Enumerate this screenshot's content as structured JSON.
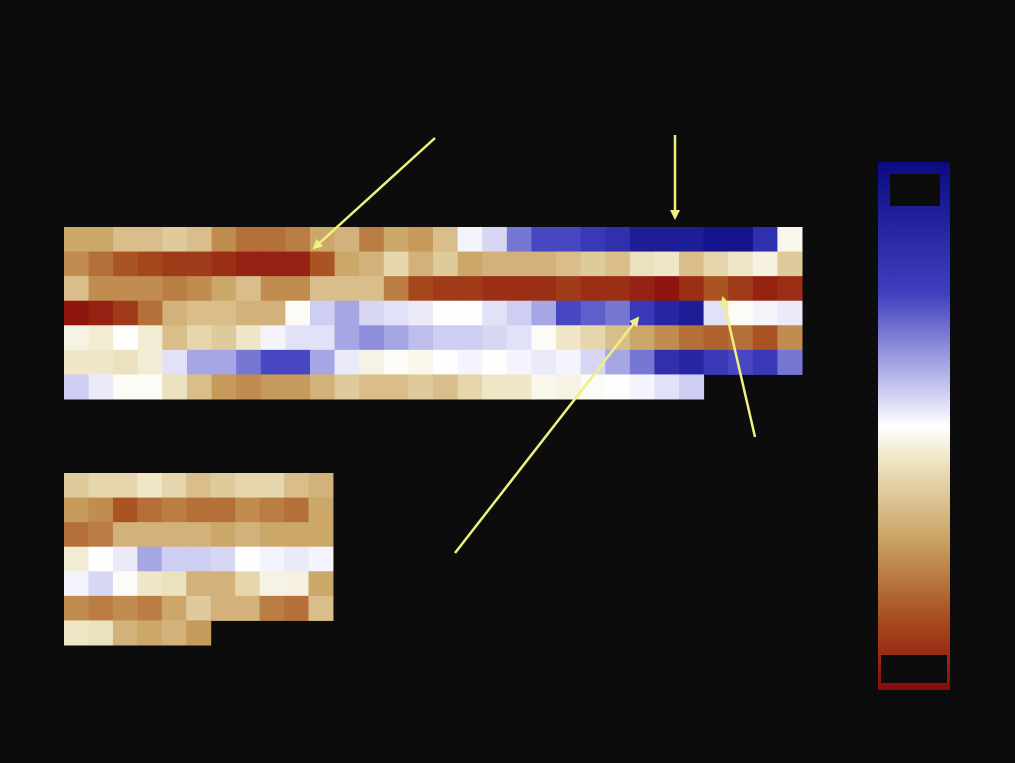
{
  "chart_data": [
    {
      "type": "heatmap",
      "clim": [
        -1,
        1
      ],
      "colorscale": [
        "#8a0a0a",
        "#a85020",
        "#c8a060",
        "#ede3c0",
        "#ffffff",
        "#c8c8f0",
        "#4040c0",
        "#0a0a80"
      ],
      "values": [
        [
          -0.4,
          -0.4,
          -0.3,
          -0.3,
          -0.25,
          -0.3,
          -0.5,
          -0.6,
          -0.6,
          -0.55,
          -0.4,
          -0.35,
          -0.55,
          -0.4,
          -0.45,
          -0.3,
          0.2,
          0.35,
          0.6,
          0.7,
          0.7,
          0.75,
          0.8,
          0.9,
          0.9,
          0.9,
          0.95,
          0.95,
          0.8,
          0.05
        ],
        [
          -0.5,
          -0.6,
          -0.7,
          -0.75,
          -0.8,
          -0.8,
          -0.85,
          -0.9,
          -0.9,
          -0.9,
          -0.7,
          -0.4,
          -0.35,
          -0.2,
          -0.35,
          -0.25,
          -0.4,
          -0.35,
          -0.35,
          -0.35,
          -0.3,
          -0.25,
          -0.3,
          -0.15,
          -0.1,
          -0.3,
          -0.2,
          -0.1,
          0,
          -0.25
        ],
        [
          -0.3,
          -0.5,
          -0.5,
          -0.5,
          -0.55,
          -0.5,
          -0.4,
          -0.3,
          -0.5,
          -0.5,
          -0.3,
          -0.3,
          -0.3,
          -0.55,
          -0.75,
          -0.8,
          -0.8,
          -0.85,
          -0.85,
          -0.85,
          -0.8,
          -0.85,
          -0.85,
          -0.9,
          -0.95,
          -0.85,
          -0.7,
          -0.8,
          -0.9,
          -0.85
        ],
        [
          -0.95,
          -0.9,
          -0.8,
          -0.6,
          -0.35,
          -0.3,
          -0.3,
          -0.35,
          -0.35,
          0.1,
          0.4,
          0.5,
          0.35,
          0.3,
          0.25,
          0.15,
          0.15,
          0.3,
          0.4,
          0.5,
          0.7,
          0.65,
          0.6,
          0.75,
          0.85,
          0.9,
          0.3,
          0.1,
          0.2,
          0.25
        ],
        [
          0.02,
          -0.05,
          0.15,
          -0.05,
          -0.3,
          -0.2,
          -0.25,
          -0.1,
          0.2,
          0.3,
          0.3,
          0.5,
          0.55,
          0.5,
          0.45,
          0.4,
          0.4,
          0.35,
          0.3,
          0.1,
          -0.1,
          -0.2,
          -0.3,
          -0.4,
          -0.5,
          -0.6,
          -0.65,
          -0.6,
          -0.7,
          -0.5
        ],
        [
          -0.1,
          -0.1,
          -0.15,
          -0.05,
          0.3,
          0.5,
          0.5,
          0.6,
          0.7,
          0.7,
          0.5,
          0.25,
          0.02,
          0.1,
          0.05,
          0.15,
          0.2,
          0.15,
          0.2,
          0.25,
          0.2,
          0.35,
          0.5,
          0.6,
          0.8,
          0.85,
          0.75,
          0.7,
          0.75,
          0.6
        ],
        [
          0.4,
          0.25,
          0.1,
          0.1,
          -0.15,
          -0.3,
          -0.45,
          -0.5,
          -0.45,
          -0.45,
          -0.35,
          -0.25,
          -0.3,
          -0.3,
          -0.25,
          -0.3,
          -0.2,
          -0.1,
          -0.1,
          0.05,
          0.02,
          0.1,
          0.15,
          0.2,
          0.3,
          0.4
        ]
      ]
    },
    {
      "type": "heatmap",
      "clim": [
        -1,
        1
      ],
      "colorscale": [
        "#8a0a0a",
        "#a85020",
        "#c8a060",
        "#ede3c0",
        "#ffffff",
        "#c8c8f0",
        "#4040c0",
        "#0a0a80"
      ],
      "values": [
        [
          -0.25,
          -0.2,
          -0.2,
          -0.1,
          -0.2,
          -0.3,
          -0.25,
          -0.2,
          -0.2,
          -0.3,
          -0.35
        ],
        [
          -0.45,
          -0.5,
          -0.7,
          -0.6,
          -0.55,
          -0.6,
          -0.6,
          -0.5,
          -0.55,
          -0.6,
          -0.4
        ],
        [
          -0.6,
          -0.55,
          -0.35,
          -0.35,
          -0.35,
          -0.35,
          -0.4,
          -0.35,
          -0.4,
          -0.4,
          -0.4
        ],
        [
          -0.05,
          0.15,
          0.25,
          0.5,
          0.4,
          0.4,
          0.35,
          0.15,
          0.2,
          0.25,
          0.2
        ],
        [
          0.2,
          0.35,
          0.1,
          -0.1,
          -0.15,
          -0.35,
          -0.35,
          -0.2,
          0.02,
          0,
          -0.4
        ],
        [
          -0.5,
          -0.55,
          -0.5,
          -0.55,
          -0.4,
          -0.25,
          -0.35,
          -0.35,
          -0.55,
          -0.6,
          -0.3
        ],
        [
          -0.1,
          -0.15,
          -0.35,
          -0.4,
          -0.35,
          -0.45
        ]
      ]
    }
  ]
}
